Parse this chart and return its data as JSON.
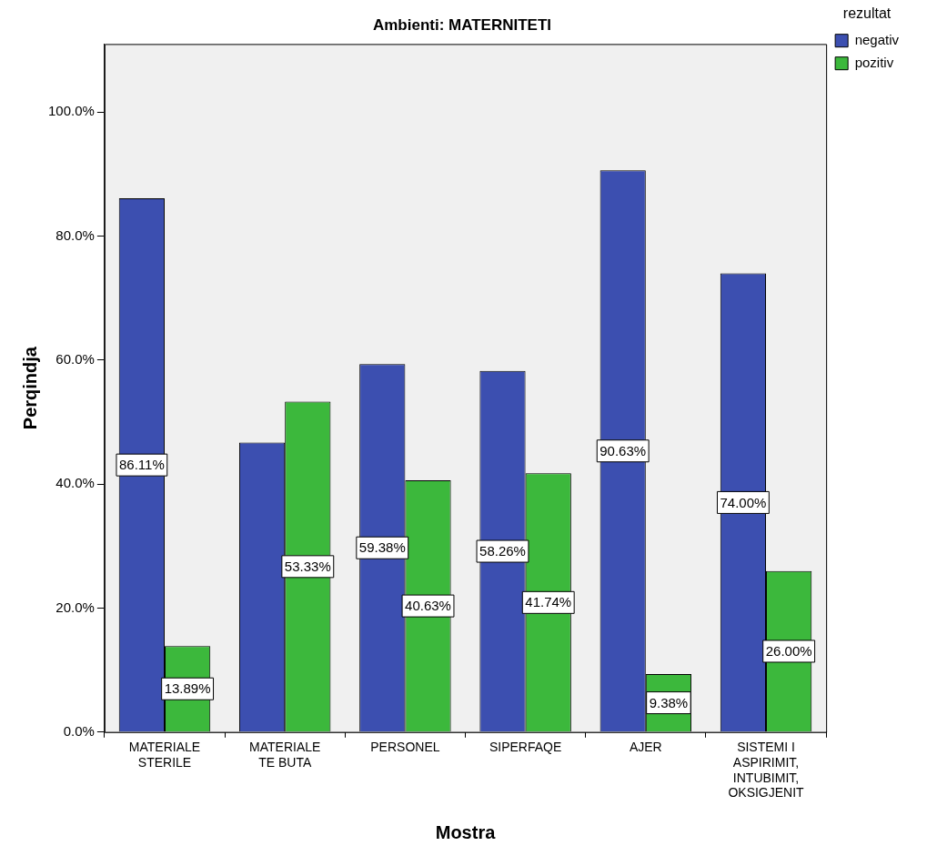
{
  "chart_data": {
    "type": "bar",
    "title": "Ambienti: MATERNITETI",
    "xlabel": "Mostra",
    "ylabel": "Perqindja",
    "legend_title": "rezultat",
    "categories": [
      "MATERIALE\nSTERILE",
      "MATERIALE\nTE BUTA",
      "PERSONEL",
      "SIPERFAQE",
      "AJER",
      "SISTEMI I\nASPIRIMIT,\nINTUBIMIT,\nOKSIGJENIT"
    ],
    "series": [
      {
        "name": "negativ",
        "color": "#3c4fb0",
        "values": [
          86.11,
          46.7,
          59.38,
          58.26,
          90.63,
          74.0
        ],
        "value_labels": [
          "86.11%",
          null,
          "59.38%",
          "58.26%",
          "90.63%",
          "74.00%"
        ]
      },
      {
        "name": "pozitiv",
        "color": "#3cb83c",
        "values": [
          13.89,
          53.33,
          40.63,
          41.74,
          9.38,
          26.0
        ],
        "value_labels": [
          "13.89%",
          "53.33%",
          "40.63%",
          "41.74%",
          "9.38%",
          "26.00%"
        ]
      }
    ],
    "ylim": [
      0,
      111
    ],
    "yticks": [
      {
        "value": 0,
        "label": "0.0%"
      },
      {
        "value": 20,
        "label": "20.0%"
      },
      {
        "value": 40,
        "label": "40.0%"
      },
      {
        "value": 60,
        "label": "60.0%"
      },
      {
        "value": 80,
        "label": "80.0%"
      },
      {
        "value": 100,
        "label": "100.0%"
      }
    ],
    "grid": false,
    "legend": "top right"
  }
}
